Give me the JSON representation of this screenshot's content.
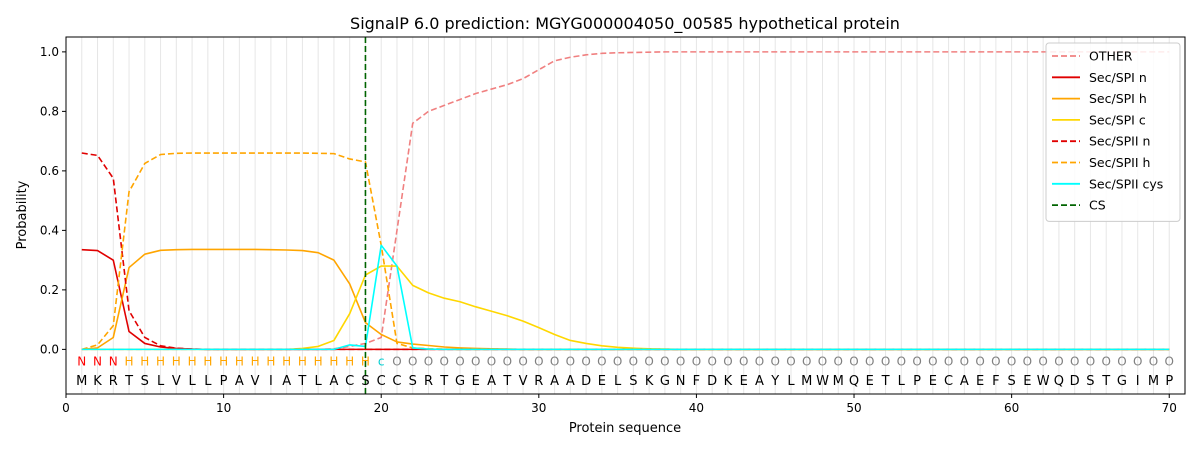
{
  "chart_data": {
    "type": "line",
    "title": "SignalP 6.0 prediction: MGYG000004050_00585 hypothetical protein",
    "xlabel": "Protein sequence",
    "ylabel": "Probability",
    "xlim": [
      0,
      71
    ],
    "ylim": [
      -0.15,
      1.05
    ],
    "x_ticks": [
      0,
      10,
      20,
      30,
      40,
      50,
      60,
      70
    ],
    "y_ticks": [
      "0.0",
      "0.2",
      "0.4",
      "0.6",
      "0.8",
      "1.0"
    ],
    "grid": "vertical lines at each residue",
    "legend_position": "top-right",
    "sequence": [
      "M",
      "K",
      "R",
      "T",
      "S",
      "L",
      "V",
      "L",
      "L",
      "P",
      "A",
      "V",
      "I",
      "A",
      "T",
      "L",
      "A",
      "C",
      "S",
      "C",
      "C",
      "S",
      "R",
      "T",
      "G",
      "E",
      "A",
      "T",
      "V",
      "R",
      "A",
      "A",
      "D",
      "E",
      "L",
      "S",
      "K",
      "G",
      "N",
      "F",
      "D",
      "K",
      "E",
      "A",
      "Y",
      "L",
      "M",
      "W",
      "M",
      "Q",
      "E",
      "T",
      "L",
      "P",
      "E",
      "C",
      "A",
      "E",
      "F",
      "S",
      "E",
      "W",
      "Q",
      "D",
      "S",
      "T",
      "G",
      "I",
      "M",
      "P"
    ],
    "region_labels": [
      "N",
      "N",
      "N",
      "H",
      "H",
      "H",
      "H",
      "H",
      "H",
      "H",
      "H",
      "H",
      "H",
      "H",
      "H",
      "H",
      "H",
      "H",
      "H",
      "c",
      "O",
      "O",
      "O",
      "O",
      "O",
      "O",
      "O",
      "O",
      "O",
      "O",
      "O",
      "O",
      "O",
      "O",
      "O",
      "O",
      "O",
      "O",
      "O",
      "O",
      "O",
      "O",
      "O",
      "O",
      "O",
      "O",
      "O",
      "O",
      "O",
      "O",
      "O",
      "O",
      "O",
      "O",
      "O",
      "O",
      "O",
      "O",
      "O",
      "O",
      "O",
      "O",
      "O",
      "O",
      "O",
      "O",
      "O",
      "O",
      "O",
      "O"
    ],
    "region_colors": {
      "N": "#ff0000",
      "H": "#ffa500",
      "c": "#00ced1",
      "O": "#808080"
    },
    "cleavage_site": 19,
    "series": [
      {
        "name": "OTHER",
        "color": "#f08080",
        "dash": "dashed",
        "values": [
          0,
          0,
          0,
          0,
          0,
          0,
          0,
          0,
          0,
          0,
          0,
          0,
          0,
          0,
          0,
          0,
          0.002,
          0.01,
          0.02,
          0.04,
          0.4,
          0.76,
          0.8,
          0.82,
          0.84,
          0.86,
          0.875,
          0.89,
          0.91,
          0.94,
          0.97,
          0.982,
          0.99,
          0.995,
          0.997,
          0.998,
          0.999,
          1,
          1,
          1,
          1,
          1,
          1,
          1,
          1,
          1,
          1,
          1,
          1,
          1,
          1,
          1,
          1,
          1,
          1,
          1,
          1,
          1,
          1,
          1,
          1,
          1,
          1,
          1,
          1,
          1,
          1,
          1,
          1,
          1
        ]
      },
      {
        "name": "Sec/SPI n",
        "color": "#e00000",
        "dash": "solid",
        "values": [
          0.335,
          0.332,
          0.3,
          0.06,
          0.02,
          0.008,
          0.003,
          0.001,
          0,
          0,
          0,
          0,
          0,
          0,
          0,
          0,
          0,
          0,
          0,
          0,
          0,
          0,
          0,
          0,
          0,
          0,
          0,
          0,
          0,
          0,
          0,
          0,
          0,
          0,
          0,
          0,
          0,
          0,
          0,
          0,
          0,
          0,
          0,
          0,
          0,
          0,
          0,
          0,
          0,
          0,
          0,
          0,
          0,
          0,
          0,
          0,
          0,
          0,
          0,
          0,
          0,
          0,
          0,
          0,
          0,
          0,
          0,
          0,
          0,
          0
        ]
      },
      {
        "name": "Sec/SPI h",
        "color": "#ffa500",
        "dash": "solid",
        "values": [
          0,
          0.005,
          0.04,
          0.275,
          0.32,
          0.333,
          0.335,
          0.336,
          0.336,
          0.336,
          0.336,
          0.336,
          0.335,
          0.334,
          0.332,
          0.325,
          0.3,
          0.22,
          0.09,
          0.05,
          0.025,
          0.018,
          0.013,
          0.008,
          0.005,
          0.003,
          0.002,
          0.001,
          0,
          0,
          0,
          0,
          0,
          0,
          0,
          0,
          0,
          0,
          0,
          0,
          0,
          0,
          0,
          0,
          0,
          0,
          0,
          0,
          0,
          0,
          0,
          0,
          0,
          0,
          0,
          0,
          0,
          0,
          0,
          0,
          0,
          0,
          0,
          0,
          0,
          0,
          0,
          0,
          0,
          0
        ]
      },
      {
        "name": "Sec/SPI c",
        "color": "#ffd700",
        "dash": "solid",
        "values": [
          0,
          0,
          0,
          0,
          0,
          0,
          0,
          0,
          0,
          0,
          0,
          0,
          0,
          0,
          0.003,
          0.01,
          0.03,
          0.12,
          0.25,
          0.28,
          0.28,
          0.215,
          0.19,
          0.172,
          0.16,
          0.143,
          0.128,
          0.113,
          0.095,
          0.073,
          0.05,
          0.03,
          0.02,
          0.012,
          0.007,
          0.004,
          0.002,
          0.001,
          0,
          0,
          0,
          0,
          0,
          0,
          0,
          0,
          0,
          0,
          0,
          0,
          0,
          0,
          0,
          0,
          0,
          0,
          0,
          0,
          0,
          0,
          0,
          0,
          0,
          0,
          0,
          0,
          0,
          0,
          0,
          0
        ]
      },
      {
        "name": "Sec/SPII n",
        "color": "#e00000",
        "dash": "dashed",
        "values": [
          0.66,
          0.652,
          0.575,
          0.13,
          0.04,
          0.012,
          0.004,
          0.001,
          0,
          0,
          0,
          0,
          0,
          0,
          0,
          0,
          0,
          0,
          0,
          0,
          0,
          0,
          0,
          0,
          0,
          0,
          0,
          0,
          0,
          0,
          0,
          0,
          0,
          0,
          0,
          0,
          0,
          0,
          0,
          0,
          0,
          0,
          0,
          0,
          0,
          0,
          0,
          0,
          0,
          0,
          0,
          0,
          0,
          0,
          0,
          0,
          0,
          0,
          0,
          0,
          0,
          0,
          0,
          0,
          0,
          0,
          0,
          0,
          0,
          0
        ]
      },
      {
        "name": "Sec/SPII h",
        "color": "#ffa500",
        "dash": "dashed",
        "values": [
          0,
          0.015,
          0.08,
          0.53,
          0.625,
          0.655,
          0.659,
          0.66,
          0.66,
          0.66,
          0.66,
          0.66,
          0.66,
          0.66,
          0.66,
          0.659,
          0.658,
          0.64,
          0.63,
          0.35,
          0.02,
          0.005,
          0.002,
          0.001,
          0,
          0,
          0,
          0,
          0,
          0,
          0,
          0,
          0,
          0,
          0,
          0,
          0,
          0,
          0,
          0,
          0,
          0,
          0,
          0,
          0,
          0,
          0,
          0,
          0,
          0,
          0,
          0,
          0,
          0,
          0,
          0,
          0,
          0,
          0,
          0,
          0,
          0,
          0,
          0,
          0,
          0,
          0,
          0,
          0,
          0
        ]
      },
      {
        "name": "Sec/SPII cys",
        "color": "#00ffff",
        "dash": "solid",
        "values": [
          0,
          0,
          0,
          0,
          0,
          0,
          0,
          0,
          0,
          0,
          0,
          0,
          0,
          0,
          0,
          0,
          0,
          0.015,
          0.01,
          0.35,
          0.28,
          0.005,
          0.001,
          0,
          0,
          0,
          0,
          0,
          0,
          0,
          0,
          0,
          0,
          0,
          0,
          0,
          0,
          0,
          0,
          0,
          0,
          0,
          0,
          0,
          0,
          0,
          0,
          0,
          0,
          0,
          0,
          0,
          0,
          0,
          0,
          0,
          0,
          0,
          0,
          0,
          0,
          0,
          0,
          0,
          0,
          0,
          0,
          0,
          0,
          0
        ]
      }
    ],
    "cs_legend": {
      "name": "CS",
      "color": "#006400",
      "dash": "dashed"
    }
  }
}
